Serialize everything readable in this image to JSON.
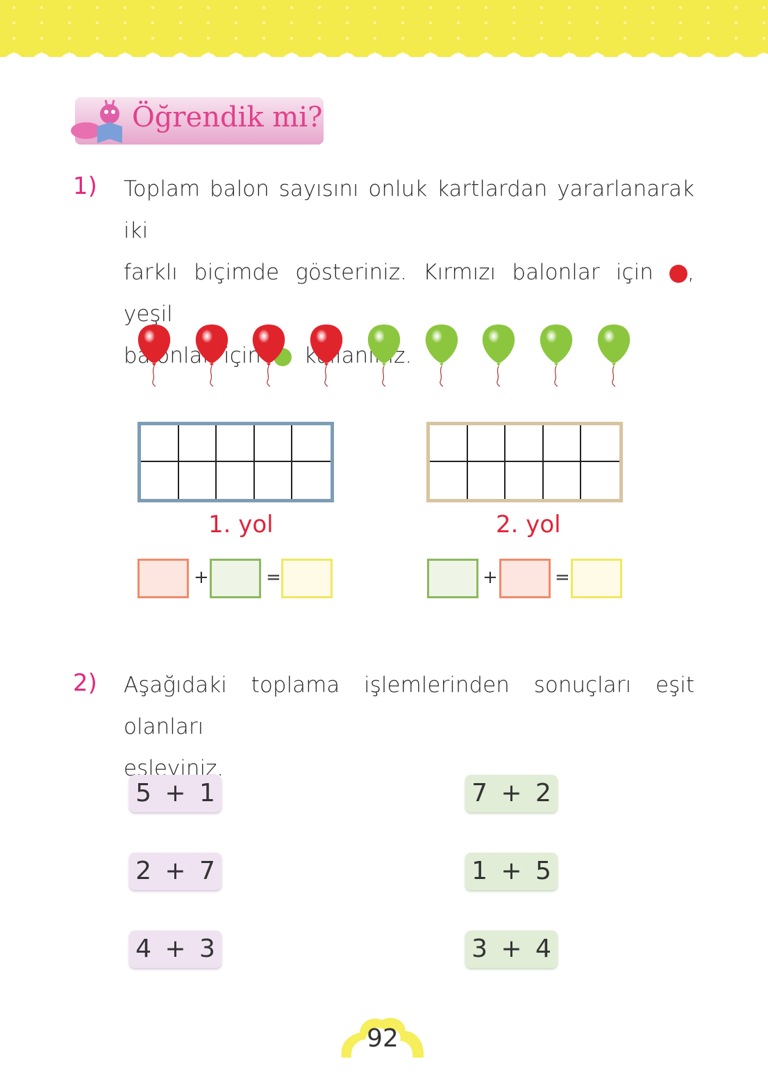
{
  "header": {
    "title": "Öğrendik mi?",
    "mascot_icon": "caterpillar-reading-book"
  },
  "q1": {
    "number": "1)",
    "line1": "Toplam balon sayısını onluk kartlardan yararlanarak iki",
    "line2a": "farklı biçimde gösteriniz. Kırmızı balonlar için",
    "line2b": ", yeşil",
    "line3a": "balonlar için",
    "line3b": "kullanınız.",
    "red_color": "#e0242c",
    "green_color": "#8cc63f",
    "balloons": [
      "red",
      "red",
      "red",
      "red",
      "green",
      "green",
      "green",
      "green",
      "green"
    ],
    "ways": [
      {
        "label": "1. yol",
        "frame_color": "#7d9db5",
        "plus": "+",
        "equals": "=",
        "boxes": [
          "#f08060",
          "#8cb860",
          "#f0e860"
        ]
      },
      {
        "label": "2. yol",
        "frame_color": "#d9c4a0",
        "plus": "+",
        "equals": "=",
        "boxes": [
          "#8cb860",
          "#f08060",
          "#f0e860"
        ]
      }
    ]
  },
  "q2": {
    "number": "2)",
    "line1": "Aşağıdaki toplama işlemlerinden sonuçları eşit olanları",
    "line2": "eşleyiniz.",
    "left": [
      "5 + 1",
      "2 + 7",
      "4 + 3"
    ],
    "right": [
      "7 + 2",
      "1 + 5",
      "3 + 4"
    ]
  },
  "page_number": "92"
}
